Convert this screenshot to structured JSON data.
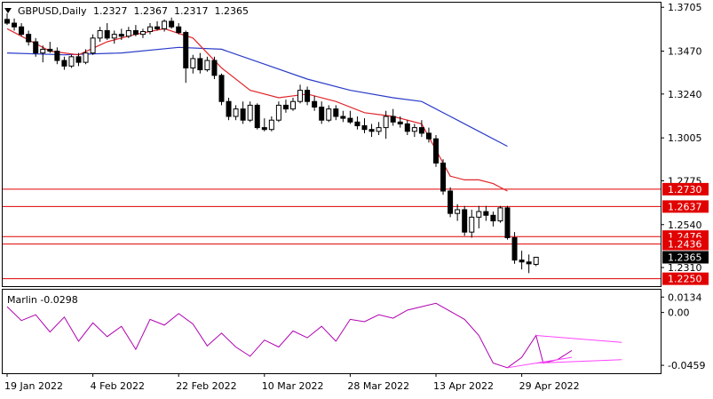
{
  "window": {
    "menu_arrow": "triangle-down-icon",
    "symbol": "GBPUSD,Daily",
    "ohlc": "1.2327  1.2367  1.2317  1.2365"
  },
  "indicator": {
    "label": "Marlin -0.0298"
  },
  "colors": {
    "bull_candle": "#ffffff",
    "bear_candle": "#000000",
    "ma_fast": "#e0262a",
    "ma_slow": "#2a3cc8",
    "levels": "#e00000",
    "marlin_line": "#b000b0",
    "trend_lines": "#ff44ff",
    "price_badge_red": "#e00000",
    "price_badge_black": "#000000"
  },
  "chart_data": {
    "type": "candlestick",
    "price_axis": {
      "ticks": [
        "1.3705",
        "1.3470",
        "1.3240",
        "1.3005",
        "1.2775",
        "1.2540",
        "1.2310"
      ],
      "range": [
        1.2215,
        1.3725
      ]
    },
    "level_badges": [
      {
        "label": "1.2730",
        "value": 1.273,
        "style": "red"
      },
      {
        "label": "1.2637",
        "value": 1.2637,
        "style": "red"
      },
      {
        "label": "1.2476",
        "value": 1.2476,
        "style": "red"
      },
      {
        "label": "1.2436",
        "value": 1.2436,
        "style": "red"
      },
      {
        "label": "1.2365",
        "value": 1.2365,
        "style": "black"
      },
      {
        "label": "1.2250",
        "value": 1.225,
        "style": "red"
      }
    ],
    "indicator_axis": {
      "ticks": [
        "0.0134",
        "0.00",
        "-0.0459"
      ],
      "range": [
        -0.052,
        0.019
      ]
    },
    "date_labels": [
      "19 Jan 2022",
      "4 Feb 2022",
      "22 Feb 2022",
      "10 Mar 2022",
      "28 Mar 2022",
      "13 Apr 2022",
      "29 Apr 2022"
    ],
    "date_label_index": [
      0,
      12,
      24,
      36,
      48,
      60,
      72
    ],
    "candles": [
      [
        1.364,
        1.3672,
        1.361,
        1.362
      ],
      [
        1.362,
        1.3645,
        1.358,
        1.36
      ],
      [
        1.36,
        1.362,
        1.355,
        1.356
      ],
      [
        1.356,
        1.358,
        1.35,
        1.352
      ],
      [
        1.352,
        1.354,
        1.344,
        1.346
      ],
      [
        1.346,
        1.35,
        1.341,
        1.348
      ],
      [
        1.348,
        1.352,
        1.346,
        1.347
      ],
      [
        1.347,
        1.349,
        1.34,
        1.342
      ],
      [
        1.342,
        1.344,
        1.337,
        1.339
      ],
      [
        1.339,
        1.345,
        1.338,
        1.344
      ],
      [
        1.344,
        1.346,
        1.339,
        1.341
      ],
      [
        1.341,
        1.348,
        1.34,
        1.346
      ],
      [
        1.346,
        1.356,
        1.345,
        1.354
      ],
      [
        1.354,
        1.36,
        1.352,
        1.358
      ],
      [
        1.358,
        1.362,
        1.353,
        1.354
      ],
      [
        1.354,
        1.358,
        1.351,
        1.356
      ],
      [
        1.356,
        1.359,
        1.353,
        1.355
      ],
      [
        1.355,
        1.36,
        1.354,
        1.358
      ],
      [
        1.358,
        1.361,
        1.355,
        1.356
      ],
      [
        1.356,
        1.359,
        1.354,
        1.3575
      ],
      [
        1.3575,
        1.362,
        1.356,
        1.36
      ],
      [
        1.36,
        1.363,
        1.358,
        1.359
      ],
      [
        1.359,
        1.364,
        1.3575,
        1.363
      ],
      [
        1.363,
        1.365,
        1.359,
        1.36
      ],
      [
        1.36,
        1.362,
        1.356,
        1.357
      ],
      [
        1.357,
        1.358,
        1.33,
        1.338
      ],
      [
        1.338,
        1.345,
        1.335,
        1.343
      ],
      [
        1.343,
        1.346,
        1.335,
        1.337
      ],
      [
        1.337,
        1.344,
        1.336,
        1.342
      ],
      [
        1.342,
        1.344,
        1.332,
        1.334
      ],
      [
        1.334,
        1.335,
        1.318,
        1.32
      ],
      [
        1.32,
        1.322,
        1.31,
        1.312
      ],
      [
        1.312,
        1.318,
        1.31,
        1.316
      ],
      [
        1.316,
        1.32,
        1.308,
        1.31
      ],
      [
        1.31,
        1.32,
        1.309,
        1.318
      ],
      [
        1.318,
        1.319,
        1.305,
        1.306
      ],
      [
        1.306,
        1.311,
        1.304,
        1.305
      ],
      [
        1.305,
        1.312,
        1.304,
        1.31
      ],
      [
        1.31,
        1.32,
        1.309,
        1.318
      ],
      [
        1.318,
        1.321,
        1.314,
        1.316
      ],
      [
        1.316,
        1.322,
        1.315,
        1.32
      ],
      [
        1.32,
        1.329,
        1.319,
        1.326
      ],
      [
        1.326,
        1.328,
        1.318,
        1.32
      ],
      [
        1.32,
        1.323,
        1.315,
        1.317
      ],
      [
        1.317,
        1.32,
        1.308,
        1.31
      ],
      [
        1.31,
        1.318,
        1.309,
        1.316
      ],
      [
        1.316,
        1.318,
        1.31,
        1.312
      ],
      [
        1.312,
        1.315,
        1.309,
        1.311
      ],
      [
        1.311,
        1.315,
        1.308,
        1.309
      ],
      [
        1.309,
        1.312,
        1.305,
        1.307
      ],
      [
        1.307,
        1.311,
        1.303,
        1.305
      ],
      [
        1.305,
        1.308,
        1.301,
        1.304
      ],
      [
        1.304,
        1.309,
        1.302,
        1.306
      ],
      [
        1.306,
        1.315,
        1.3,
        1.312
      ],
      [
        1.312,
        1.316,
        1.307,
        1.309
      ],
      [
        1.309,
        1.312,
        1.306,
        1.308
      ],
      [
        1.308,
        1.31,
        1.302,
        1.304
      ],
      [
        1.304,
        1.308,
        1.301,
        1.306
      ],
      [
        1.306,
        1.31,
        1.301,
        1.303
      ],
      [
        1.303,
        1.306,
        1.298,
        1.3
      ],
      [
        1.3,
        1.302,
        1.285,
        1.287
      ],
      [
        1.287,
        1.289,
        1.27,
        1.272
      ],
      [
        1.272,
        1.274,
        1.258,
        1.26
      ],
      [
        1.26,
        1.265,
        1.256,
        1.262
      ],
      [
        1.262,
        1.264,
        1.248,
        1.25
      ],
      [
        1.25,
        1.262,
        1.247,
        1.258
      ],
      [
        1.258,
        1.264,
        1.252,
        1.261
      ],
      [
        1.261,
        1.264,
        1.256,
        1.259
      ],
      [
        1.259,
        1.261,
        1.253,
        1.256
      ],
      [
        1.256,
        1.264,
        1.255,
        1.263
      ],
      [
        1.263,
        1.264,
        1.246,
        1.247
      ],
      [
        1.247,
        1.25,
        1.233,
        1.235
      ],
      [
        1.235,
        1.24,
        1.23,
        1.234
      ],
      [
        1.234,
        1.238,
        1.228,
        1.233
      ],
      [
        1.2327,
        1.2367,
        1.2317,
        1.2365
      ]
    ],
    "ma_fast": [
      [
        0,
        1.359
      ],
      [
        6,
        1.347
      ],
      [
        10,
        1.345
      ],
      [
        14,
        1.352
      ],
      [
        18,
        1.356
      ],
      [
        22,
        1.359
      ],
      [
        26,
        1.354
      ],
      [
        30,
        1.338
      ],
      [
        34,
        1.326
      ],
      [
        38,
        1.322
      ],
      [
        42,
        1.324
      ],
      [
        46,
        1.32
      ],
      [
        50,
        1.314
      ],
      [
        54,
        1.312
      ],
      [
        58,
        1.308
      ],
      [
        62,
        1.28
      ],
      [
        64,
        1.278
      ],
      [
        66,
        1.278
      ],
      [
        68,
        1.276
      ],
      [
        70,
        1.272
      ]
    ],
    "ma_slow": [
      [
        0,
        1.346
      ],
      [
        8,
        1.345
      ],
      [
        16,
        1.346
      ],
      [
        24,
        1.349
      ],
      [
        30,
        1.348
      ],
      [
        36,
        1.34
      ],
      [
        42,
        1.332
      ],
      [
        48,
        1.326
      ],
      [
        54,
        1.322
      ],
      [
        58,
        1.32
      ],
      [
        62,
        1.312
      ],
      [
        66,
        1.304
      ],
      [
        70,
        1.296
      ]
    ],
    "marlin": [
      [
        0,
        0.005
      ],
      [
        2,
        -0.007
      ],
      [
        4,
        -0.002
      ],
      [
        6,
        -0.017
      ],
      [
        8,
        -0.004
      ],
      [
        10,
        -0.025
      ],
      [
        12,
        -0.009
      ],
      [
        14,
        -0.021
      ],
      [
        16,
        -0.012
      ],
      [
        18,
        -0.032
      ],
      [
        20,
        -0.006
      ],
      [
        22,
        -0.011
      ],
      [
        24,
        -0.001
      ],
      [
        26,
        -0.01
      ],
      [
        28,
        -0.029
      ],
      [
        30,
        -0.018
      ],
      [
        32,
        -0.03
      ],
      [
        34,
        -0.038
      ],
      [
        36,
        -0.024
      ],
      [
        38,
        -0.03
      ],
      [
        40,
        -0.016
      ],
      [
        42,
        -0.022
      ],
      [
        44,
        -0.012
      ],
      [
        46,
        -0.025
      ],
      [
        48,
        -0.006
      ],
      [
        50,
        -0.008
      ],
      [
        52,
        -0.002
      ],
      [
        54,
        -0.005
      ],
      [
        56,
        0.002
      ],
      [
        58,
        0.005
      ],
      [
        60,
        0.008
      ],
      [
        62,
        0.001
      ],
      [
        64,
        -0.006
      ],
      [
        66,
        -0.02
      ],
      [
        68,
        -0.044
      ],
      [
        70,
        -0.048
      ],
      [
        72,
        -0.039
      ],
      [
        74,
        -0.02
      ],
      [
        75,
        -0.044
      ],
      [
        77,
        -0.041
      ],
      [
        79,
        -0.033
      ]
    ],
    "horizontal_levels": [
      1.273,
      1.2637,
      1.2476,
      1.2436,
      1.225
    ],
    "trend_lines": [
      [
        [
          74,
          -0.02
        ],
        [
          86,
          -0.026
        ]
      ],
      [
        [
          74,
          -0.044
        ],
        [
          86,
          -0.041
        ]
      ],
      [
        [
          70,
          -0.048
        ],
        [
          79,
          -0.039
        ]
      ]
    ]
  }
}
